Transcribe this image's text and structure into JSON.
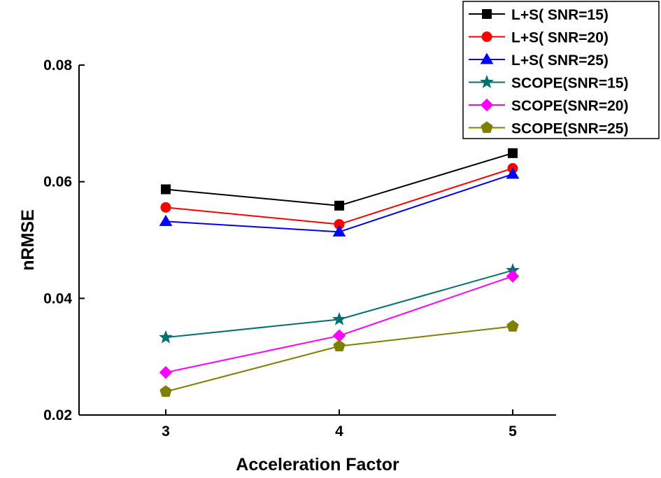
{
  "chart_data": {
    "type": "line",
    "title": "",
    "xlabel": "Acceleration Factor",
    "ylabel": "nRMSE",
    "x": [
      3,
      4,
      5
    ],
    "x_tick_labels": [
      "3",
      "4",
      "5"
    ],
    "xlim": [
      2.5,
      5.25
    ],
    "ylim": [
      0.02,
      0.08
    ],
    "y_ticks": [
      0.02,
      0.04,
      0.06,
      0.08
    ],
    "y_tick_labels": [
      "0.02",
      "0.04",
      "0.06",
      "0.08"
    ],
    "grid": false,
    "legend_position": "top-right",
    "series": [
      {
        "name": "L+S( SNR=15)",
        "color": "#000000",
        "marker": "square",
        "values": [
          0.0587,
          0.0559,
          0.0649
        ]
      },
      {
        "name": "L+S( SNR=20)",
        "color": "#ff0000",
        "marker": "circle",
        "values": [
          0.0556,
          0.0527,
          0.0623
        ]
      },
      {
        "name": "L+S( SNR=25)",
        "color": "#0000ff",
        "marker": "triangle",
        "values": [
          0.0532,
          0.0514,
          0.0613
        ]
      },
      {
        "name": "SCOPE(SNR=15)",
        "color": "#007070",
        "marker": "star",
        "values": [
          0.0333,
          0.0364,
          0.0448
        ]
      },
      {
        "name": "SCOPE(SNR=20)",
        "color": "#ff00ff",
        "marker": "diamond",
        "values": [
          0.0273,
          0.0336,
          0.0438
        ]
      },
      {
        "name": "SCOPE(SNR=25)",
        "color": "#7f7f00",
        "marker": "pentagon",
        "values": [
          0.024,
          0.0318,
          0.0352
        ]
      }
    ]
  }
}
